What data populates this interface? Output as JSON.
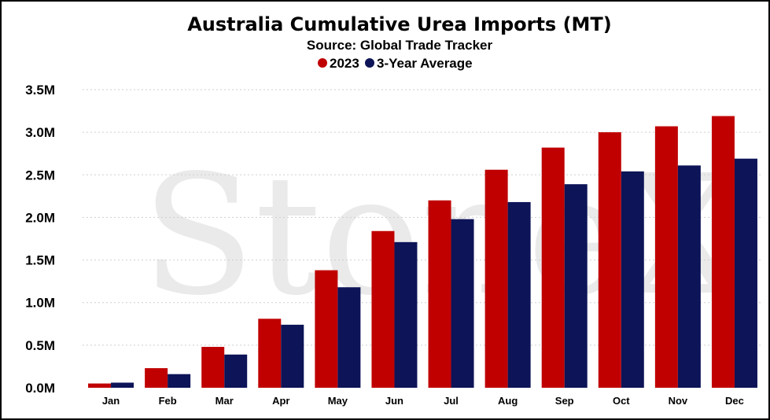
{
  "watermark_text": "StoneX",
  "chart_data": {
    "type": "bar",
    "title": "Australia Cumulative Urea Imports (MT)",
    "subtitle": "Source: Global Trade Tracker",
    "xlabel": "",
    "ylabel": "",
    "ylim": [
      0,
      3500000
    ],
    "yticks": [
      0,
      500000,
      1000000,
      1500000,
      2000000,
      2500000,
      3000000,
      3500000
    ],
    "ytick_labels": [
      "0.0M",
      "0.5M",
      "1.0M",
      "1.5M",
      "2.0M",
      "2.5M",
      "3.0M",
      "3.5M"
    ],
    "grid": true,
    "legend_position": "top-center",
    "categories": [
      "Jan",
      "Feb",
      "Mar",
      "Apr",
      "May",
      "Jun",
      "Jul",
      "Aug",
      "Sep",
      "Oct",
      "Nov",
      "Dec"
    ],
    "series": [
      {
        "name": "2023",
        "color": "#c00000",
        "values": [
          50000,
          230000,
          480000,
          810000,
          1380000,
          1840000,
          2200000,
          2560000,
          2820000,
          3000000,
          3070000,
          3190000
        ]
      },
      {
        "name": "3-Year Average",
        "color": "#0d1457",
        "values": [
          60000,
          160000,
          390000,
          740000,
          1180000,
          1710000,
          1980000,
          2180000,
          2390000,
          2540000,
          2610000,
          2690000
        ]
      }
    ]
  }
}
